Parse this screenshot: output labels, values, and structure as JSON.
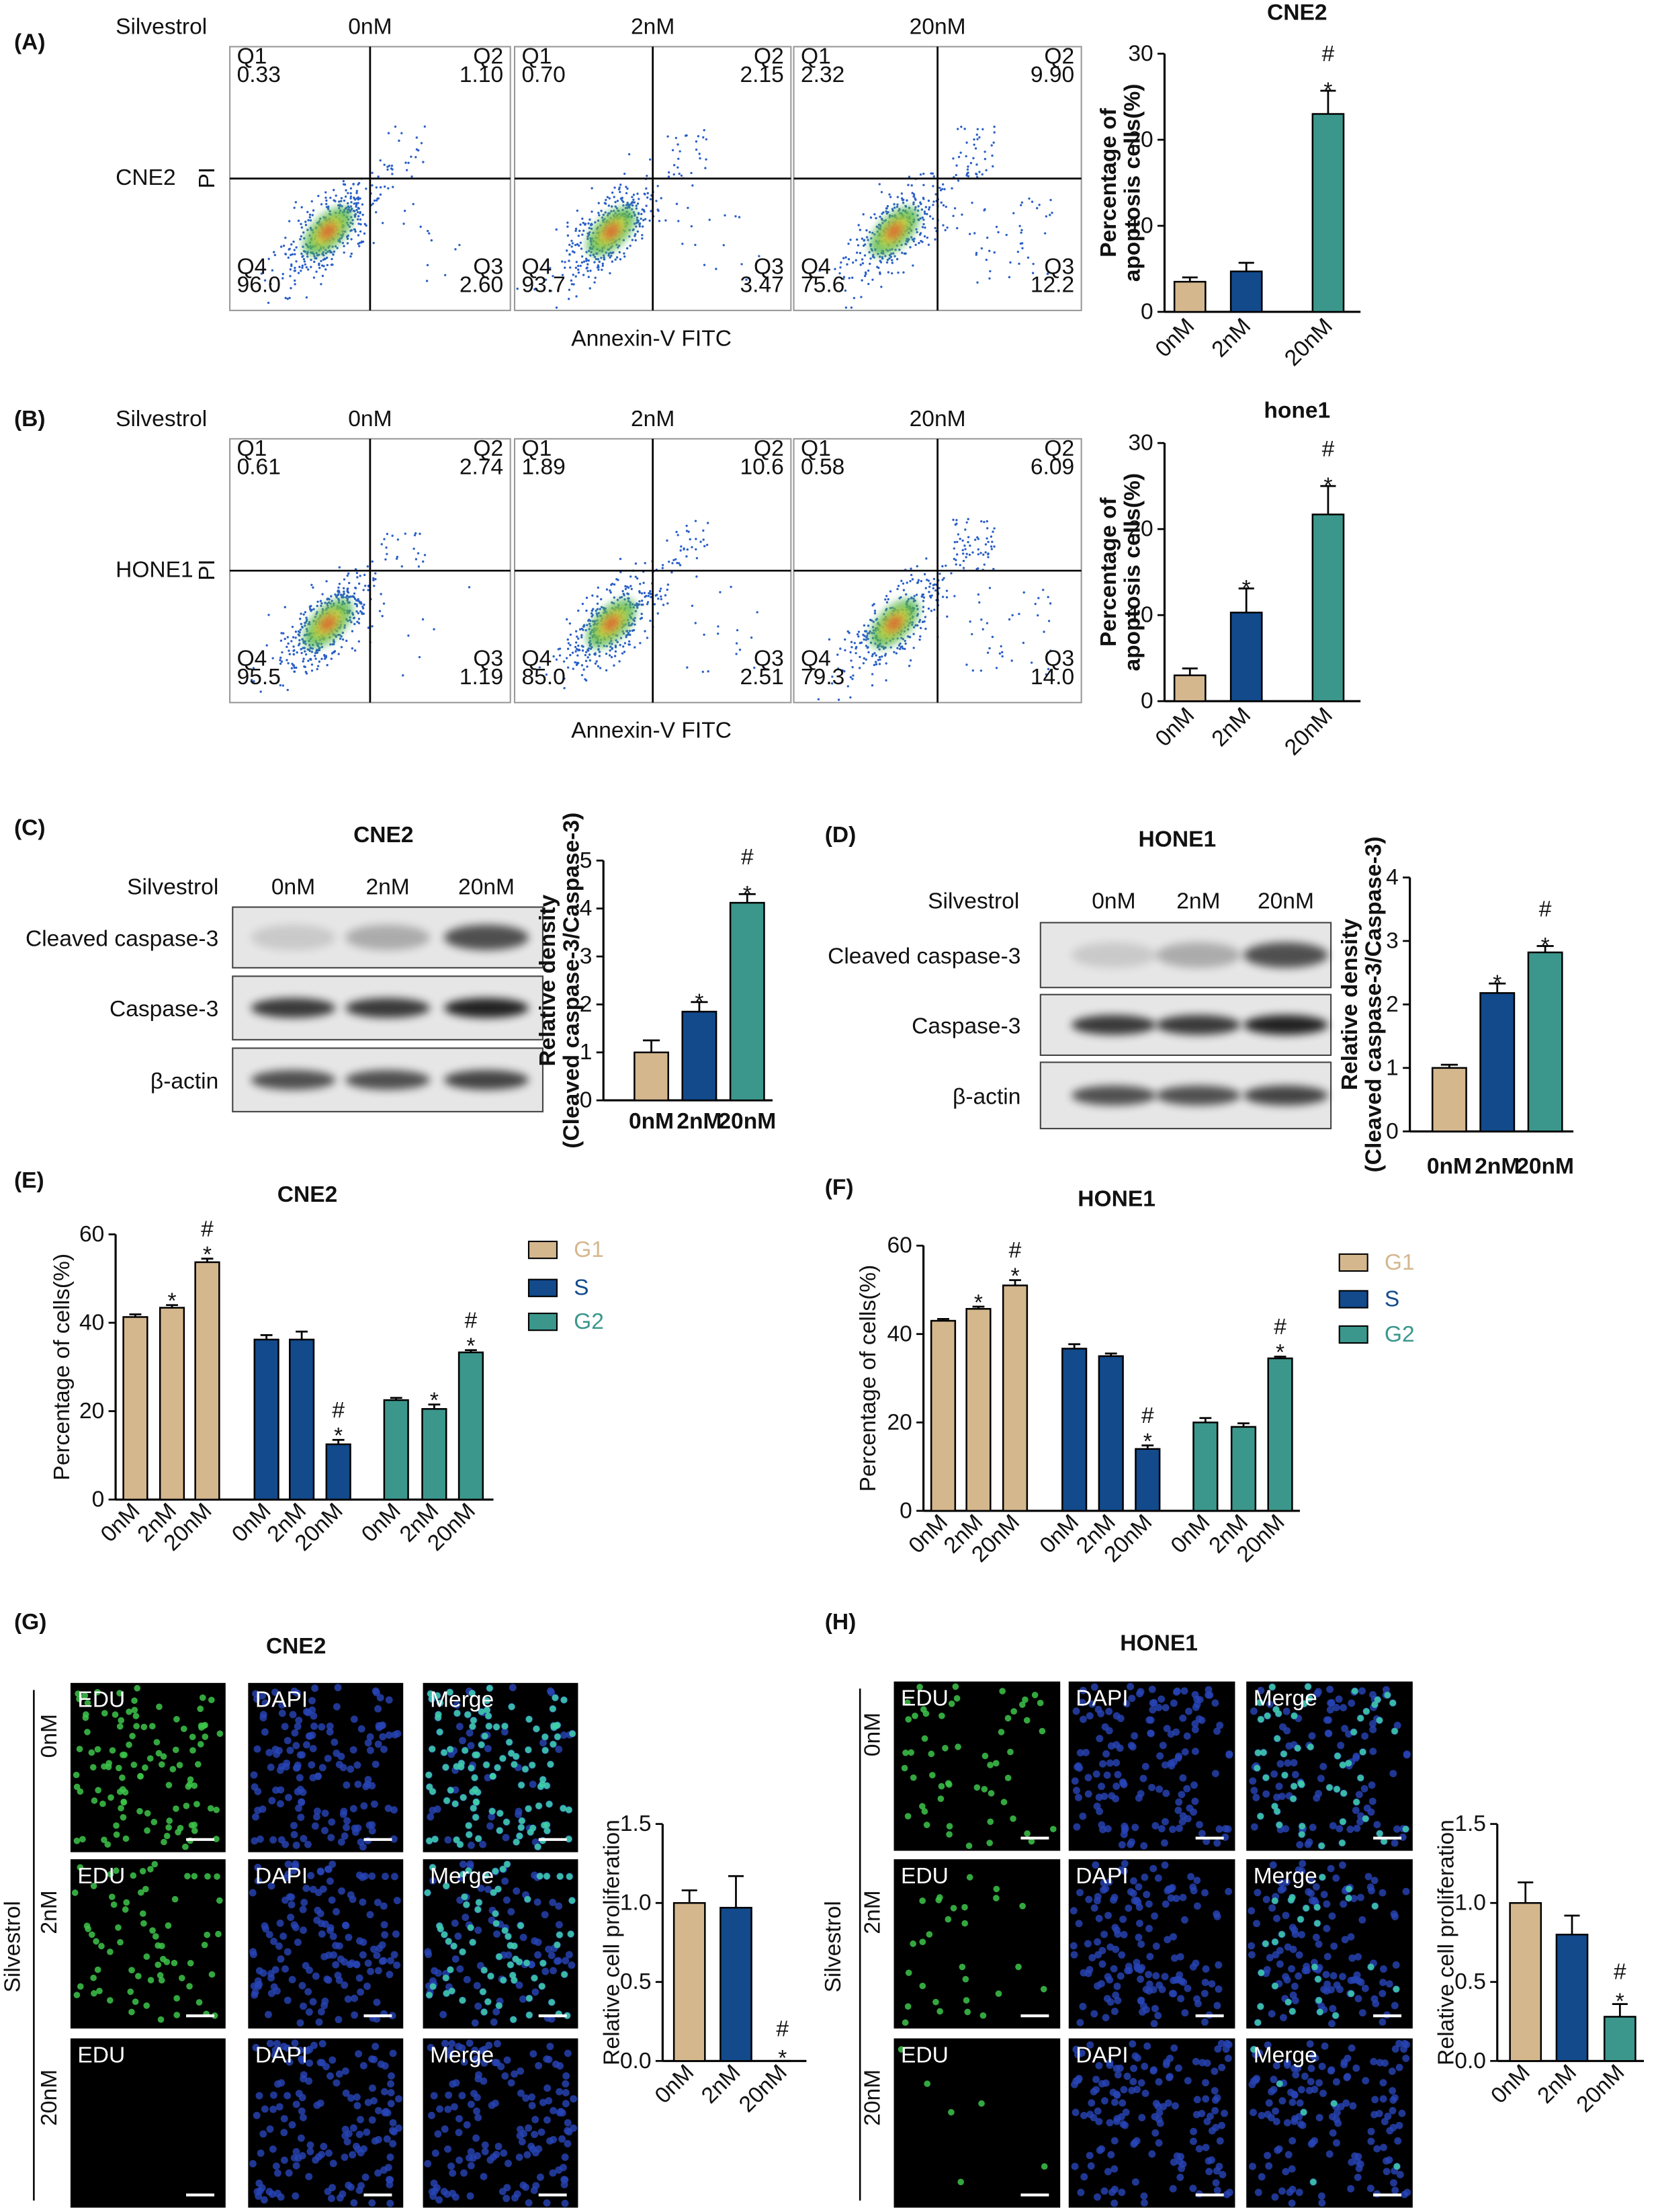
{
  "flow": [
    {
      "label": "(A)",
      "treatment": "Silvestrol",
      "cell": "CNE2",
      "y_label": "PI",
      "x_label": "Annexin-V FITC",
      "doses": [
        "0nM",
        "2nM",
        "20nM"
      ],
      "quadrant_names": [
        "Q1",
        "Q2",
        "Q3",
        "Q4"
      ],
      "quadrants": [
        [
          "0.33",
          "1.10",
          "2.60",
          "96.0"
        ],
        [
          "0.70",
          "2.15",
          "3.47",
          "93.7"
        ],
        [
          "2.32",
          "9.90",
          "12.2",
          "75.6"
        ]
      ]
    },
    {
      "label": "(B)",
      "treatment": "Silvestrol",
      "cell": "HONE1",
      "y_label": "PI",
      "x_label": "Annexin-V FITC",
      "doses": [
        "0nM",
        "2nM",
        "20nM"
      ],
      "quadrant_names": [
        "Q1",
        "Q2",
        "Q3",
        "Q4"
      ],
      "quadrants": [
        [
          "0.61",
          "2.74",
          "1.19",
          "95.5"
        ],
        [
          "1.89",
          "10.6",
          "2.51",
          "85.0"
        ],
        [
          "0.58",
          "6.09",
          "14.0",
          "79.3"
        ]
      ]
    }
  ],
  "blots": [
    {
      "label": "(C)",
      "title": "CNE2",
      "treatment": "Silvestrol",
      "doses": [
        "0nM",
        "2nM",
        "20nM"
      ],
      "rows": [
        "Cleaved caspase-3",
        "Caspase-3",
        "β-actin"
      ]
    },
    {
      "label": "(D)",
      "title": "HONE1",
      "treatment": "Silvestrol",
      "doses": [
        "0nM",
        "2nM",
        "20nM"
      ],
      "rows": [
        "Cleaved caspase-3",
        "Caspase-3",
        "β-actin"
      ]
    }
  ],
  "edu": [
    {
      "label": "(G)",
      "title": "CNE2",
      "treatment": "Silvestrol",
      "doses": [
        "0nM",
        "2nM",
        "20nM"
      ],
      "stains": [
        "EDU",
        "DAPI",
        "Merge"
      ]
    },
    {
      "label": "(H)",
      "title": "HONE1",
      "treatment": "Silvestrol",
      "doses": [
        "0nM",
        "2nM",
        "20nM"
      ],
      "stains": [
        "EDU",
        "DAPI",
        "Merge"
      ]
    }
  ],
  "chart_data": [
    {
      "type": "bar",
      "title": "CNE2",
      "categories": [
        "0nM",
        "2nM",
        "20nM"
      ],
      "values": [
        3.5,
        4.7,
        23
      ],
      "errors": [
        0.5,
        1,
        2.7
      ],
      "colors": [
        "#d5b78e",
        "#124a8c",
        "#3b978c"
      ],
      "annotations": [
        [],
        [],
        [
          "#",
          "*"
        ]
      ],
      "y_label": [
        "Percentage of",
        "apoptosis cells(%)"
      ],
      "ylim": [
        0,
        30
      ],
      "yticks": [
        0,
        10,
        20,
        30
      ]
    },
    {
      "type": "bar",
      "title": "hone1",
      "categories": [
        "0nM",
        "2nM",
        "20nM"
      ],
      "values": [
        3,
        10.3,
        21.7
      ],
      "errors": [
        0.8,
        2.8,
        3.3
      ],
      "colors": [
        "#d5b78e",
        "#124a8c",
        "#3b978c"
      ],
      "annotations": [
        [],
        [
          "*"
        ],
        [
          "#",
          "*"
        ]
      ],
      "y_label": [
        "Percentage of",
        "apoptosis cells(%)"
      ],
      "ylim": [
        0,
        30
      ],
      "yticks": [
        0,
        10,
        20,
        30
      ]
    },
    {
      "type": "bar",
      "categories": [
        "0nM",
        "2nM",
        "20nM"
      ],
      "values": [
        1,
        1.85,
        4.12
      ],
      "errors": [
        0.25,
        0.2,
        0.18
      ],
      "colors": [
        "#d5b78e",
        "#124a8c",
        "#3b978c"
      ],
      "annotations": [
        [],
        [
          "*"
        ],
        [
          "#",
          "*"
        ]
      ],
      "y_label": [
        "Relative density",
        "(Cleaved caspase-3/Caspase-3)"
      ],
      "ylim": [
        0,
        5
      ],
      "yticks": [
        0,
        1,
        2,
        3,
        4,
        5
      ]
    },
    {
      "type": "bar",
      "categories": [
        "0nM",
        "2nM",
        "20nM"
      ],
      "values": [
        1,
        2.18,
        2.82
      ],
      "errors": [
        0.05,
        0.15,
        0.1
      ],
      "colors": [
        "#d5b78e",
        "#124a8c",
        "#3b978c"
      ],
      "annotations": [
        [],
        [
          "*"
        ],
        [
          "#",
          "*"
        ]
      ],
      "y_label": [
        "Relative density",
        "(Cleaved caspase-3/Caspase-3)"
      ],
      "ylim": [
        0,
        4
      ],
      "yticks": [
        0,
        1,
        2,
        3,
        4
      ]
    },
    {
      "type": "grouped_bar",
      "panel": "(E)",
      "title": "CNE2",
      "categories": [
        "0nM",
        "2nM",
        "20nM"
      ],
      "y_label": [
        "Percentage of cells(%)"
      ],
      "ylim": [
        0,
        60
      ],
      "yticks": [
        0,
        20,
        40,
        60
      ],
      "series": [
        {
          "name": "G1",
          "color": "#d5b78e",
          "values": [
            41.3,
            43.4,
            53.7
          ],
          "errors": [
            0.6,
            0.6,
            0.8
          ],
          "annotations": [
            [],
            [
              "*"
            ],
            [
              "#",
              "*"
            ]
          ]
        },
        {
          "name": "S",
          "color": "#124a8c",
          "values": [
            36.2,
            36.2,
            12.5
          ],
          "errors": [
            1,
            1.8,
            1
          ],
          "annotations": [
            [],
            [],
            [
              "#",
              "*"
            ]
          ]
        },
        {
          "name": "G2",
          "color": "#3b978c",
          "values": [
            22.5,
            20.5,
            33.3
          ],
          "errors": [
            0.5,
            1,
            0.5
          ],
          "annotations": [
            [],
            [
              "*"
            ],
            [
              "#",
              "*"
            ]
          ]
        }
      ]
    },
    {
      "type": "grouped_bar",
      "panel": "(F)",
      "title": "HONE1",
      "categories": [
        "0nM",
        "2nM",
        "20nM"
      ],
      "y_label": [
        "Percentage of cells(%)"
      ],
      "ylim": [
        0,
        60
      ],
      "yticks": [
        0,
        20,
        40,
        60
      ],
      "series": [
        {
          "name": "G1",
          "color": "#d5b78e",
          "values": [
            43,
            45.7,
            51
          ],
          "errors": [
            0.4,
            0.5,
            1.2
          ],
          "annotations": [
            [],
            [
              "*"
            ],
            [
              "#",
              "*"
            ]
          ]
        },
        {
          "name": "S",
          "color": "#124a8c",
          "values": [
            36.7,
            35,
            14
          ],
          "errors": [
            1,
            0.6,
            0.8
          ],
          "annotations": [
            [],
            [],
            [
              "#",
              "*"
            ]
          ]
        },
        {
          "name": "G2",
          "color": "#3b978c",
          "values": [
            20,
            19,
            34.5
          ],
          "errors": [
            1,
            0.8,
            0.4
          ],
          "annotations": [
            [],
            [],
            [
              "#",
              "*"
            ]
          ]
        }
      ]
    },
    {
      "type": "bar",
      "categories": [
        "0nM",
        "2nM",
        "20nM"
      ],
      "values": [
        1,
        0.97,
        0
      ],
      "errors": [
        0.08,
        0.2,
        0
      ],
      "colors": [
        "#d5b78e",
        "#124a8c",
        "#3b978c"
      ],
      "annotations": [
        [],
        [],
        [
          "#",
          "*"
        ]
      ],
      "y_label": [
        "Relative cell proliferation"
      ],
      "ylim": [
        0,
        1.5
      ],
      "yticks": [
        {
          "value": 0,
          "label": "0.0"
        },
        0.5,
        {
          "value": 1,
          "label": "1.0"
        },
        1.5
      ]
    },
    {
      "type": "bar",
      "categories": [
        "0nM",
        "2nM",
        "20nM"
      ],
      "values": [
        1,
        0.8,
        0.28
      ],
      "errors": [
        0.13,
        0.12,
        0.08
      ],
      "colors": [
        "#d5b78e",
        "#124a8c",
        "#3b978c"
      ],
      "annotations": [
        [],
        [],
        [
          "#",
          "*"
        ]
      ],
      "y_label": [
        "Relative cell proliferation"
      ],
      "ylim": [
        0,
        1.5
      ],
      "yticks": [
        {
          "value": 0,
          "label": "0.0"
        },
        0.5,
        {
          "value": 1,
          "label": "1.0"
        },
        1.5
      ]
    }
  ]
}
